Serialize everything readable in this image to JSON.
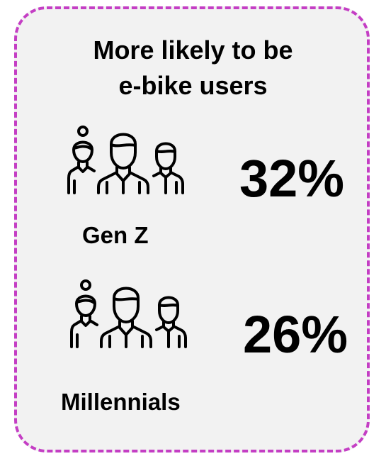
{
  "card": {
    "title_line1": "More likely to be",
    "title_line2": "e-bike users",
    "border_color": "#c43ec4",
    "background_color": "#f2f2f2"
  },
  "segments": [
    {
      "label": "Gen Z",
      "percent": "32%",
      "icon": "people-group-icon"
    },
    {
      "label": "Millennials",
      "percent": "26%",
      "icon": "people-group-icon"
    }
  ]
}
